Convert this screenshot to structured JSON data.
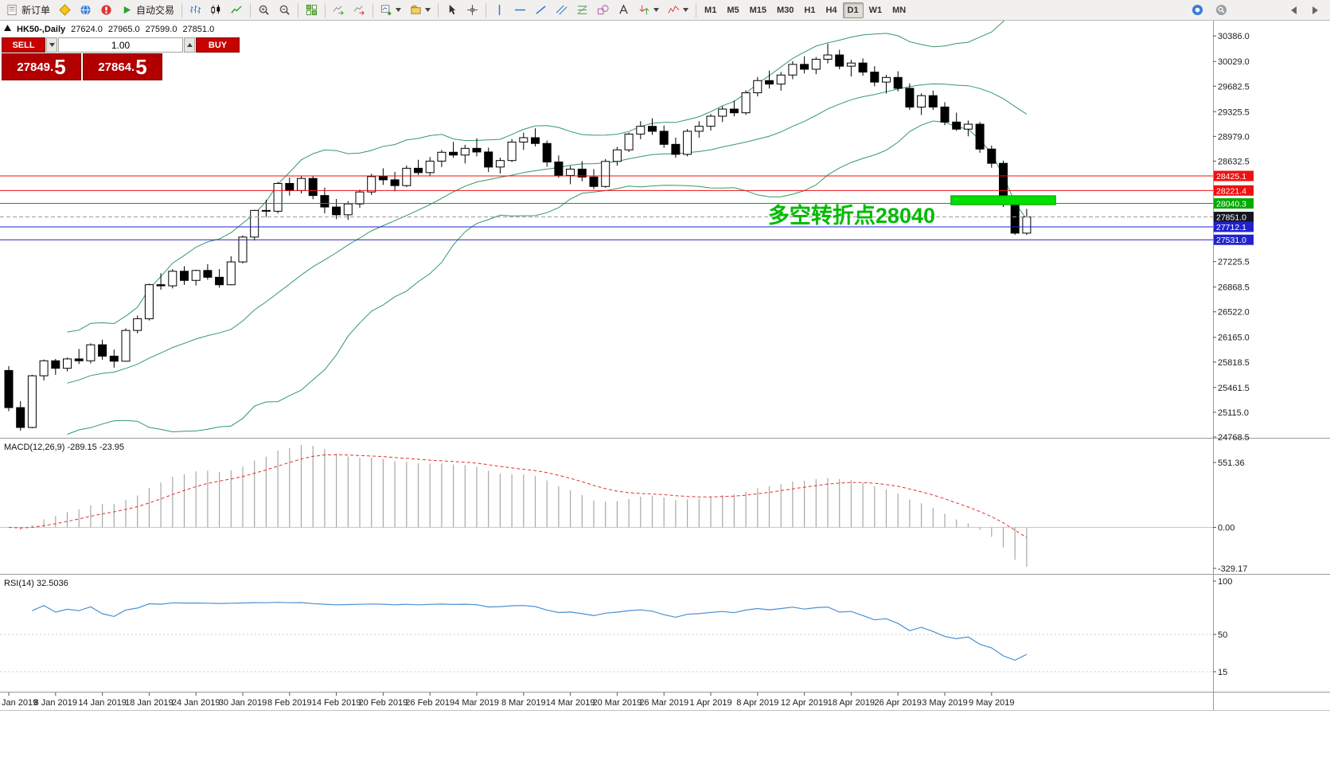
{
  "toolbar": {
    "new_order_label": "新订单",
    "autotrading_label": "自动交易",
    "timeframes": [
      "M1",
      "M5",
      "M15",
      "M30",
      "H1",
      "H4",
      "D1",
      "W1",
      "MN"
    ],
    "active_timeframe": "D1",
    "icons": {
      "new-order-icon": "form-sheet",
      "autotrading-icon": "green-play-triangle",
      "zoom-in-icon": "magnifier-plus",
      "zoom-out-icon": "magnifier-minus",
      "dropdown-caret-icon": "▼",
      "crosshair-icon": "+"
    }
  },
  "one_click": {
    "sell_label": "SELL",
    "buy_label": "BUY",
    "volume": "1.00",
    "sell_price_main": "27849.",
    "sell_price_big": "5",
    "buy_price_main": "27864.",
    "buy_price_big": "5"
  },
  "chart_header": {
    "symbol_period": "HK50-,Daily",
    "open": "27624.0",
    "high": "27965.0",
    "low": "27599.0",
    "close": "27851.0"
  },
  "indicators": {
    "macd_label": "MACD(12,26,9) -289.15 -23.95",
    "rsi_label": "RSI(14) 32.5036"
  },
  "levels": [
    {
      "value": 28425.1,
      "label": "28425.1",
      "color": "#ee1111"
    },
    {
      "value": 28221.4,
      "label": "28221.4",
      "color": "#ee1111"
    },
    {
      "value": 28040.3,
      "label": "28040.3",
      "color": "#00aa00"
    },
    {
      "value": 27851.0,
      "label": "27851.0",
      "color": "#15151f",
      "type": "bid"
    },
    {
      "value": 27712.1,
      "label": "27712.1",
      "color": "#2222cc"
    },
    {
      "value": 27531.0,
      "label": "27531.0",
      "color": "#2222cc"
    }
  ],
  "annotation": {
    "text": "多空转折点28040",
    "color": "#00bb00"
  },
  "highlight_box": {
    "bar_start": 81,
    "bar_end": 89,
    "price_top": 28148,
    "price_bottom": 28022,
    "color": "#00dd00"
  },
  "axes": {
    "price_labels": [
      "30386.0",
      "30029.0",
      "29682.5",
      "29325.5",
      "28979.0",
      "28632.5",
      "27225.5",
      "26868.5",
      "26522.0",
      "26165.0",
      "25818.5",
      "25461.5",
      "25115.0",
      "24768.5"
    ],
    "macd_labels": [
      "551.36",
      "0.00",
      "-329.17"
    ],
    "rsi_labels": [
      "100",
      "50",
      "15"
    ],
    "date_labels": [
      "Jan 2019",
      "8 Jan 2019",
      "14 Jan 2019",
      "18 Jan 2019",
      "24 Jan 2019",
      "30 Jan 2019",
      "8 Feb 2019",
      "14 Feb 2019",
      "20 Feb 2019",
      "26 Feb 2019",
      "4 Mar 2019",
      "8 Mar 2019",
      "14 Mar 2019",
      "20 Mar 2019",
      "26 Mar 2019",
      "1 Apr 2019",
      "8 Apr 2019",
      "12 Apr 2019",
      "18 Apr 2019",
      "26 Apr 2019",
      "3 May 2019",
      "9 May 2019"
    ]
  },
  "chart_data": {
    "type": "candlestick",
    "symbol": "HK50",
    "period": "Daily",
    "price_axis_range": [
      24757,
      30600
    ],
    "overlays": [
      {
        "name": "Bollinger Bands",
        "period": 20,
        "deviation": 2,
        "color": "#339966"
      }
    ],
    "sub_indicators": [
      {
        "name": "MACD",
        "params": [
          12,
          26,
          9
        ],
        "last_values": [
          -289.15,
          -23.95
        ],
        "axis_range": [
          -329.17,
          551.36
        ]
      },
      {
        "name": "RSI",
        "params": [
          14
        ],
        "last_value": 32.5036,
        "levels": [
          15,
          50
        ]
      }
    ],
    "ohlc": [
      [
        25700,
        25760,
        25130,
        25180
      ],
      [
        25180,
        25270,
        24856,
        24902
      ],
      [
        24902,
        25640,
        24890,
        25626
      ],
      [
        25626,
        25854,
        25560,
        25836
      ],
      [
        25836,
        25862,
        25640,
        25731
      ],
      [
        25731,
        25880,
        25690,
        25862
      ],
      [
        25862,
        26002,
        25790,
        25836
      ],
      [
        25836,
        26080,
        25800,
        26060
      ],
      [
        26060,
        26132,
        25850,
        25901
      ],
      [
        25901,
        25992,
        25740,
        25830
      ],
      [
        25830,
        26290,
        25822,
        26261
      ],
      [
        26261,
        26470,
        26220,
        26425
      ],
      [
        26425,
        26916,
        26400,
        26902
      ],
      [
        26902,
        27062,
        26830,
        26886
      ],
      [
        26886,
        27120,
        26850,
        27090
      ],
      [
        27090,
        27160,
        26900,
        26962
      ],
      [
        26962,
        27112,
        26890,
        27101
      ],
      [
        27101,
        27190,
        26970,
        27006
      ],
      [
        27006,
        27120,
        26860,
        26901
      ],
      [
        26901,
        27300,
        26895,
        27221
      ],
      [
        27221,
        27592,
        27200,
        27569
      ],
      [
        27569,
        27952,
        27520,
        27942
      ],
      [
        27942,
        28092,
        27850,
        27931
      ],
      [
        27931,
        28342,
        27900,
        28320
      ],
      [
        28320,
        28402,
        28150,
        28221
      ],
      [
        28221,
        28425,
        28180,
        28390
      ],
      [
        28390,
        28432,
        28100,
        28151
      ],
      [
        28151,
        28262,
        27900,
        27990
      ],
      [
        27990,
        28102,
        27820,
        27881
      ],
      [
        27881,
        28072,
        27810,
        28034
      ],
      [
        28034,
        28232,
        27980,
        28201
      ],
      [
        28201,
        28456,
        28160,
        28416
      ],
      [
        28416,
        28532,
        28300,
        28371
      ],
      [
        28371,
        28482,
        28210,
        28290
      ],
      [
        28290,
        28572,
        28270,
        28533
      ],
      [
        28533,
        28652,
        28440,
        28472
      ],
      [
        28472,
        28690,
        28420,
        28633
      ],
      [
        28633,
        28790,
        28550,
        28757
      ],
      [
        28757,
        28902,
        28680,
        28718
      ],
      [
        28718,
        28862,
        28600,
        28812
      ],
      [
        28812,
        28952,
        28700,
        28761
      ],
      [
        28761,
        28822,
        28480,
        28550
      ],
      [
        28550,
        28682,
        28460,
        28641
      ],
      [
        28641,
        28942,
        28620,
        28900
      ],
      [
        28900,
        29032,
        28790,
        28961
      ],
      [
        28961,
        29092,
        28840,
        28880
      ],
      [
        28880,
        28922,
        28555,
        28621
      ],
      [
        28621,
        28712,
        28400,
        28432
      ],
      [
        28432,
        28566,
        28310,
        28521
      ],
      [
        28521,
        28632,
        28350,
        28410
      ],
      [
        28410,
        28522,
        28240,
        28278
      ],
      [
        28278,
        28662,
        28260,
        28629
      ],
      [
        28629,
        28832,
        28570,
        28791
      ],
      [
        28791,
        29032,
        28760,
        29012
      ],
      [
        29012,
        29192,
        28940,
        29120
      ],
      [
        29120,
        29232,
        29000,
        29051
      ],
      [
        29051,
        29132,
        28820,
        28868
      ],
      [
        28868,
        28962,
        28680,
        28728
      ],
      [
        28728,
        29082,
        28700,
        29051
      ],
      [
        29051,
        29192,
        28960,
        29121
      ],
      [
        29121,
        29292,
        29060,
        29262
      ],
      [
        29262,
        29402,
        29180,
        29362
      ],
      [
        29362,
        29482,
        29260,
        29310
      ],
      [
        29310,
        29626,
        29280,
        29590
      ],
      [
        29590,
        29812,
        29540,
        29761
      ],
      [
        29761,
        29902,
        29650,
        29712
      ],
      [
        29712,
        29882,
        29620,
        29839
      ],
      [
        29839,
        30032,
        29780,
        29988
      ],
      [
        29988,
        30102,
        29860,
        29920
      ],
      [
        29920,
        30092,
        29850,
        30060
      ],
      [
        30060,
        30280,
        30000,
        30120
      ],
      [
        30120,
        30192,
        29920,
        29963
      ],
      [
        29963,
        30052,
        29820,
        30007
      ],
      [
        30007,
        30072,
        29830,
        29880
      ],
      [
        29880,
        29963,
        29680,
        29740
      ],
      [
        29740,
        29842,
        29580,
        29805
      ],
      [
        29805,
        29892,
        29610,
        29653
      ],
      [
        29653,
        29722,
        29350,
        29390
      ],
      [
        29390,
        29582,
        29280,
        29550
      ],
      [
        29550,
        29622,
        29350,
        29391
      ],
      [
        29391,
        29458,
        29135,
        29180
      ],
      [
        29180,
        29312,
        29056,
        29081
      ],
      [
        29081,
        29202,
        28980,
        29150
      ],
      [
        29150,
        29182,
        28750,
        28802
      ],
      [
        28802,
        28852,
        28540,
        28602
      ],
      [
        28602,
        28640,
        27990,
        28044
      ],
      [
        28044,
        28120,
        27600,
        27624
      ],
      [
        27624,
        27965,
        27599,
        27851
      ]
    ]
  }
}
